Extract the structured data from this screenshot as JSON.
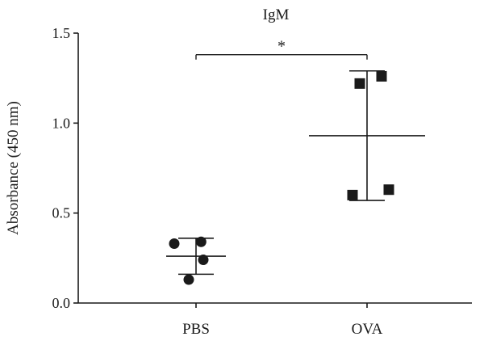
{
  "chart_data": {
    "type": "scatter",
    "title": "IgM",
    "ylabel": "Absorbance (450 nm)",
    "xlabel": "",
    "categories": [
      "PBS",
      "OVA"
    ],
    "ylim": [
      0,
      1.5
    ],
    "yticks": [
      0.0,
      0.5,
      1.0,
      1.5
    ],
    "ytick_labels": [
      "0.0",
      "0.5",
      "1.0",
      "1.5"
    ],
    "grid": false,
    "groups": [
      {
        "category": "PBS",
        "marker": "circle",
        "points": [
          0.13,
          0.24,
          0.33,
          0.34
        ],
        "mean": 0.26,
        "error_upper": 0.36,
        "error_lower": 0.16
      },
      {
        "category": "OVA",
        "marker": "square",
        "points": [
          0.6,
          0.63,
          1.22,
          1.26
        ],
        "mean": 0.93,
        "error_upper": 1.29,
        "error_lower": 0.57
      }
    ],
    "significance": {
      "between": [
        "PBS",
        "OVA"
      ],
      "label": "*",
      "level": 1.38
    }
  }
}
